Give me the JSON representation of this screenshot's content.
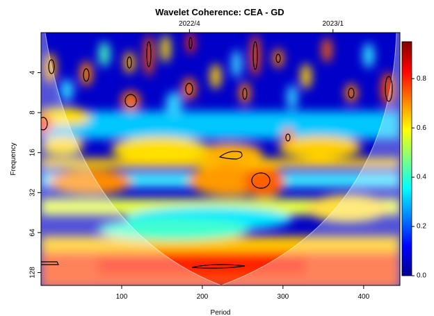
{
  "chart_data": {
    "type": "heatmap",
    "title": "Wavelet Coherence: CEA - GD",
    "xlabel": "Period",
    "ylabel": "Frequency",
    "x_range": [
      0,
      445
    ],
    "y_scale": "log2",
    "y_range": [
      2,
      160
    ],
    "x_ticks": [
      100,
      200,
      300,
      400
    ],
    "x_tick_labels": [
      "100",
      "200",
      "300",
      "400"
    ],
    "y_ticks": [
      4,
      8,
      16,
      32,
      64,
      128
    ],
    "y_tick_labels": [
      "4",
      "8",
      "16",
      "32",
      "64",
      "128"
    ],
    "top_axis_ticks": [
      {
        "x": 184,
        "label": "2022/4"
      },
      {
        "x": 362,
        "label": "2023/1"
      }
    ],
    "colorbar": {
      "range": [
        0,
        0.95
      ],
      "ticks": [
        0.0,
        0.2,
        0.4,
        0.6,
        0.8
      ],
      "tick_labels": [
        "0.0",
        "0.2",
        "0.4",
        "0.6",
        "0.8"
      ],
      "colors": [
        "#00008F",
        "#0000FF",
        "#0080FF",
        "#00FFFF",
        "#80FF80",
        "#FFFF00",
        "#FF8000",
        "#FF0000",
        "#800000"
      ]
    },
    "significant_regions": [
      {
        "x": 13,
        "y": 4.0
      },
      {
        "x": 56,
        "y": 4.6
      },
      {
        "x": 110,
        "y": 3.0
      },
      {
        "x": 112,
        "y": 6.9
      },
      {
        "x": 133,
        "y": 2.6
      },
      {
        "x": 184,
        "y": 5.6
      },
      {
        "x": 255,
        "y": 6.2
      },
      {
        "x": 267,
        "y": 2.0
      },
      {
        "x": 291,
        "y": 3.0
      },
      {
        "x": 309,
        "y": 12.9
      },
      {
        "x": 384,
        "y": 6.2
      },
      {
        "x": 428,
        "y": 6.6
      },
      {
        "x": 2,
        "y": 10.3
      },
      {
        "x": 237,
        "y": 17.5
      },
      {
        "x": 272,
        "y": 26.8
      },
      {
        "x": 8,
        "y": 110
      },
      {
        "x": 218,
        "y": 115
      }
    ]
  }
}
